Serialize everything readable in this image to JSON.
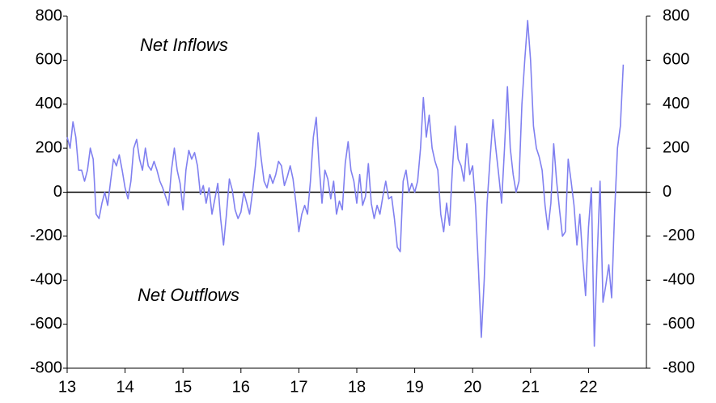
{
  "chart_data": {
    "type": "line",
    "annotations": [
      "Net Inflows",
      "Net Outflows"
    ],
    "x": [
      13.0,
      13.05,
      13.1,
      13.15,
      13.2,
      13.25,
      13.3,
      13.35,
      13.4,
      13.45,
      13.5,
      13.55,
      13.6,
      13.65,
      13.7,
      13.75,
      13.8,
      13.85,
      13.9,
      13.95,
      14.0,
      14.05,
      14.1,
      14.15,
      14.2,
      14.25,
      14.3,
      14.35,
      14.4,
      14.45,
      14.5,
      14.55,
      14.6,
      14.65,
      14.7,
      14.75,
      14.8,
      14.85,
      14.9,
      14.95,
      15.0,
      15.05,
      15.1,
      15.15,
      15.2,
      15.25,
      15.3,
      15.35,
      15.4,
      15.45,
      15.5,
      15.55,
      15.6,
      15.65,
      15.7,
      15.75,
      15.8,
      15.85,
      15.9,
      15.95,
      16.0,
      16.05,
      16.1,
      16.15,
      16.2,
      16.25,
      16.3,
      16.35,
      16.4,
      16.45,
      16.5,
      16.55,
      16.6,
      16.65,
      16.7,
      16.75,
      16.8,
      16.85,
      16.9,
      16.95,
      17.0,
      17.05,
      17.1,
      17.15,
      17.2,
      17.25,
      17.3,
      17.35,
      17.4,
      17.45,
      17.5,
      17.55,
      17.6,
      17.65,
      17.7,
      17.75,
      17.8,
      17.85,
      17.9,
      17.95,
      18.0,
      18.05,
      18.1,
      18.15,
      18.2,
      18.25,
      18.3,
      18.35,
      18.4,
      18.45,
      18.5,
      18.55,
      18.6,
      18.65,
      18.7,
      18.75,
      18.8,
      18.85,
      18.9,
      18.95,
      19.0,
      19.05,
      19.1,
      19.15,
      19.2,
      19.25,
      19.3,
      19.35,
      19.4,
      19.45,
      19.5,
      19.55,
      19.6,
      19.65,
      19.7,
      19.75,
      19.8,
      19.85,
      19.9,
      19.95,
      20.0,
      20.05,
      20.1,
      20.15,
      20.2,
      20.25,
      20.3,
      20.35,
      20.4,
      20.45,
      20.5,
      20.55,
      20.6,
      20.65,
      20.7,
      20.75,
      20.8,
      20.85,
      20.9,
      20.95,
      21.0,
      21.05,
      21.1,
      21.15,
      21.2,
      21.25,
      21.3,
      21.35,
      21.4,
      21.45,
      21.5,
      21.55,
      21.6,
      21.65,
      21.7,
      21.75,
      21.8,
      21.85,
      21.9,
      21.95,
      22.0,
      22.05,
      22.1,
      22.15,
      22.2,
      22.25,
      22.3,
      22.35,
      22.4,
      22.45,
      22.5,
      22.55,
      22.6
    ],
    "series": [
      {
        "color": "#8080f0",
        "values": [
          250,
          200,
          320,
          250,
          100,
          100,
          50,
          100,
          200,
          150,
          -100,
          -120,
          -50,
          0,
          -60,
          50,
          150,
          120,
          170,
          100,
          20,
          -30,
          50,
          200,
          240,
          150,
          100,
          200,
          120,
          100,
          140,
          100,
          50,
          20,
          -20,
          -60,
          100,
          200,
          100,
          40,
          -80,
          100,
          190,
          150,
          180,
          120,
          -10,
          30,
          -50,
          20,
          -100,
          -30,
          40,
          -120,
          -240,
          -100,
          60,
          10,
          -80,
          -120,
          -90,
          0,
          -50,
          -100,
          0,
          120,
          270,
          150,
          50,
          20,
          80,
          40,
          80,
          140,
          120,
          30,
          70,
          120,
          60,
          -50,
          -180,
          -100,
          -60,
          -100,
          50,
          250,
          340,
          120,
          -50,
          100,
          60,
          -30,
          50,
          -100,
          -40,
          -80,
          130,
          230,
          100,
          50,
          -50,
          80,
          -60,
          -20,
          130,
          -50,
          -120,
          -60,
          -100,
          -20,
          50,
          -30,
          -20,
          -120,
          -250,
          -270,
          50,
          100,
          0,
          40,
          0,
          50,
          200,
          430,
          250,
          350,
          200,
          140,
          100,
          -100,
          -180,
          -50,
          -150,
          100,
          300,
          150,
          120,
          50,
          220,
          80,
          120,
          -60,
          -350,
          -660,
          -400,
          -50,
          150,
          330,
          200,
          80,
          -50,
          200,
          480,
          200,
          80,
          0,
          50,
          400,
          600,
          780,
          600,
          300,
          200,
          160,
          100,
          -60,
          -170,
          -50,
          220,
          50,
          -80,
          -200,
          -180,
          150,
          50,
          -60,
          -240,
          -100,
          -300,
          -470,
          -160,
          20,
          -700,
          -300,
          50,
          -500,
          -420,
          -330,
          -480,
          -100,
          200,
          300,
          580
        ]
      }
    ],
    "xlim": [
      13,
      23
    ],
    "xticks": [
      13,
      14,
      15,
      16,
      17,
      18,
      19,
      20,
      21,
      22
    ],
    "ylim": [
      -800,
      800
    ],
    "yticks": [
      -800,
      -600,
      -400,
      -200,
      0,
      200,
      400,
      600,
      800
    ],
    "y2lim": [
      -800,
      800
    ],
    "y2ticks": [
      -800,
      -600,
      -400,
      -200,
      0,
      200,
      400,
      600,
      800
    ]
  }
}
